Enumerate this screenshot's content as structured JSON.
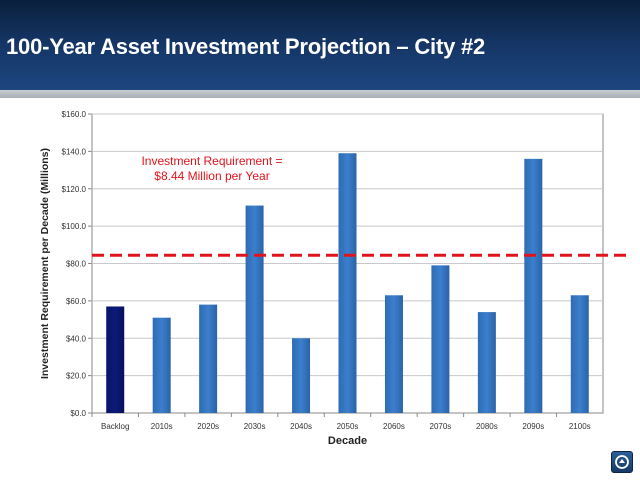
{
  "slide": {
    "title": "100-Year Asset Investment Projection – City #2"
  },
  "colors": {
    "header_dark": "#0a1f3c",
    "header_light": "#1d4680",
    "bar_backlog": "#0c1a7a",
    "bar_decades": "#3c7fcc",
    "requirement_line": "#e0141c"
  },
  "chart_data": {
    "type": "bar",
    "xlabel": "Decade",
    "ylabel": "Investment Requirement per Decade (Millions)",
    "ylim": [
      0,
      160
    ],
    "yticks": [
      0,
      20,
      40,
      60,
      80,
      100,
      120,
      140,
      160
    ],
    "ytick_labels": [
      "$0.0",
      "$20.0",
      "$40.0",
      "$60.0",
      "$80.0",
      "$100.0",
      "$120.0",
      "$140.0",
      "$160.0"
    ],
    "categories": [
      "Backlog",
      "2010s",
      "2020s",
      "2030s",
      "2040s",
      "2050s",
      "2060s",
      "2070s",
      "2080s",
      "2090s",
      "2100s"
    ],
    "values": [
      57,
      51,
      58,
      111,
      40,
      139,
      63,
      79,
      54,
      136,
      63
    ],
    "grid": true,
    "reference_line": {
      "value": 84.4,
      "style": "dashed",
      "label_lines": [
        "Investment Requirement =",
        "$8.44 Million per Year"
      ]
    }
  },
  "logo": {
    "icon": "agency-logo-icon"
  }
}
